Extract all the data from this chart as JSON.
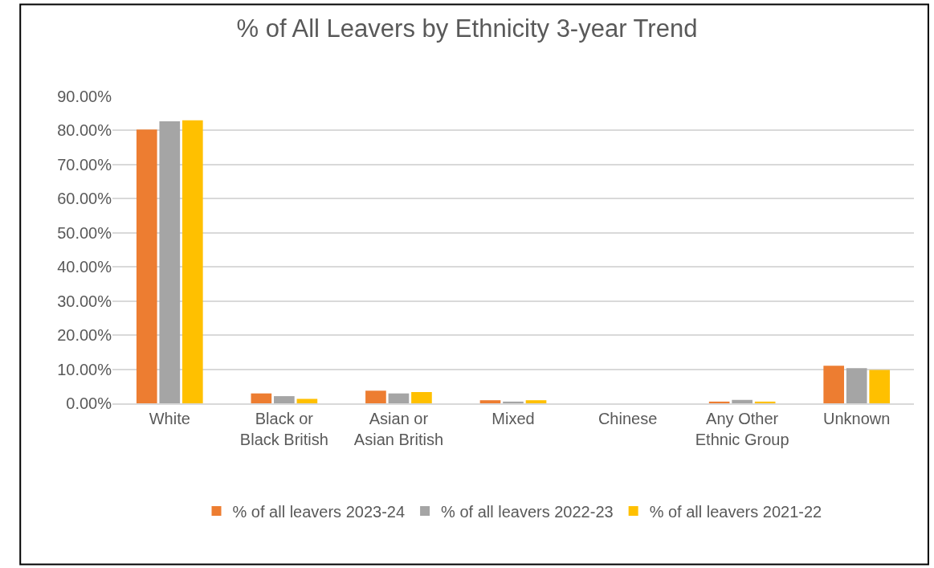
{
  "chart_data": {
    "type": "bar",
    "title": "% of All Leavers by Ethnicity 3-year Trend",
    "categories": [
      "White",
      "Black or Black British",
      "Asian or Asian British",
      "Mixed",
      "Chinese",
      "Any Other Ethnic Group",
      "Unknown"
    ],
    "series": [
      {
        "name": "% of all leavers 2023-24",
        "color": "#ed7d31",
        "values": [
          80.3,
          2.9,
          3.7,
          0.9,
          0,
          0.5,
          11.0
        ]
      },
      {
        "name": "% of all leavers 2022-23",
        "color": "#a5a5a5",
        "values": [
          82.7,
          2.1,
          2.9,
          0.5,
          0,
          1.0,
          10.3
        ]
      },
      {
        "name": "% of all leavers 2021-22",
        "color": "#ffc000",
        "values": [
          83.0,
          1.3,
          3.3,
          0.9,
          0,
          0.5,
          9.8
        ]
      }
    ],
    "ylim": [
      0,
      90
    ],
    "yticks": [
      {
        "value": 0,
        "label": "0.00%"
      },
      {
        "value": 10,
        "label": "10.00%"
      },
      {
        "value": 20,
        "label": "20.00%"
      },
      {
        "value": 30,
        "label": "30.00%"
      },
      {
        "value": 40,
        "label": "40.00%"
      },
      {
        "value": 50,
        "label": "50.00%"
      },
      {
        "value": 60,
        "label": "60.00%"
      },
      {
        "value": 70,
        "label": "70.00%"
      },
      {
        "value": 80,
        "label": "80.00%"
      },
      {
        "value": 90,
        "label": "90.00%"
      }
    ],
    "grid": "y",
    "legend": "bottom"
  }
}
